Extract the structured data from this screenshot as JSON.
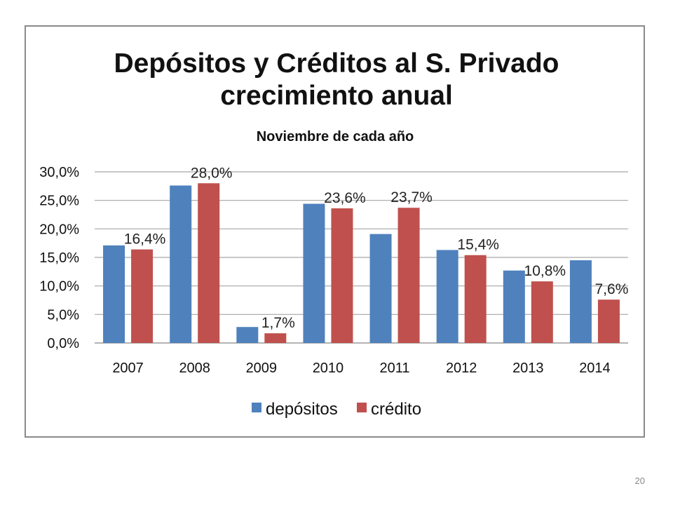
{
  "chart_data": {
    "type": "bar",
    "title": "Depósitos y Créditos al S. Privado",
    "title_line2": "crecimiento anual",
    "subtitle": "Noviembre de cada año",
    "categories": [
      "2007",
      "2008",
      "2009",
      "2010",
      "2011",
      "2012",
      "2013",
      "2014"
    ],
    "series": [
      {
        "name": "depósitos",
        "color": "#4f81bd",
        "values": [
          17.1,
          27.6,
          2.8,
          24.4,
          19.1,
          16.3,
          12.7,
          14.5
        ],
        "labels": [
          "",
          "",
          "",
          "",
          "",
          "",
          "",
          ""
        ]
      },
      {
        "name": "crédito",
        "color": "#c0504d",
        "values": [
          16.4,
          28.0,
          1.7,
          23.6,
          23.7,
          15.4,
          10.8,
          7.6
        ],
        "labels": [
          "16,4%",
          "28,0%",
          "1,7%",
          "23,6%",
          "23,7%",
          "15,4%",
          "10,8%",
          "7,6%"
        ]
      }
    ],
    "y_ticks": [
      "0,0%",
      "5,0%",
      "10,0%",
      "15,0%",
      "20,0%",
      "25,0%",
      "30,0%"
    ],
    "ylim": [
      0,
      30
    ],
    "grid": true,
    "legend": "bottom"
  },
  "slide_number": "20"
}
